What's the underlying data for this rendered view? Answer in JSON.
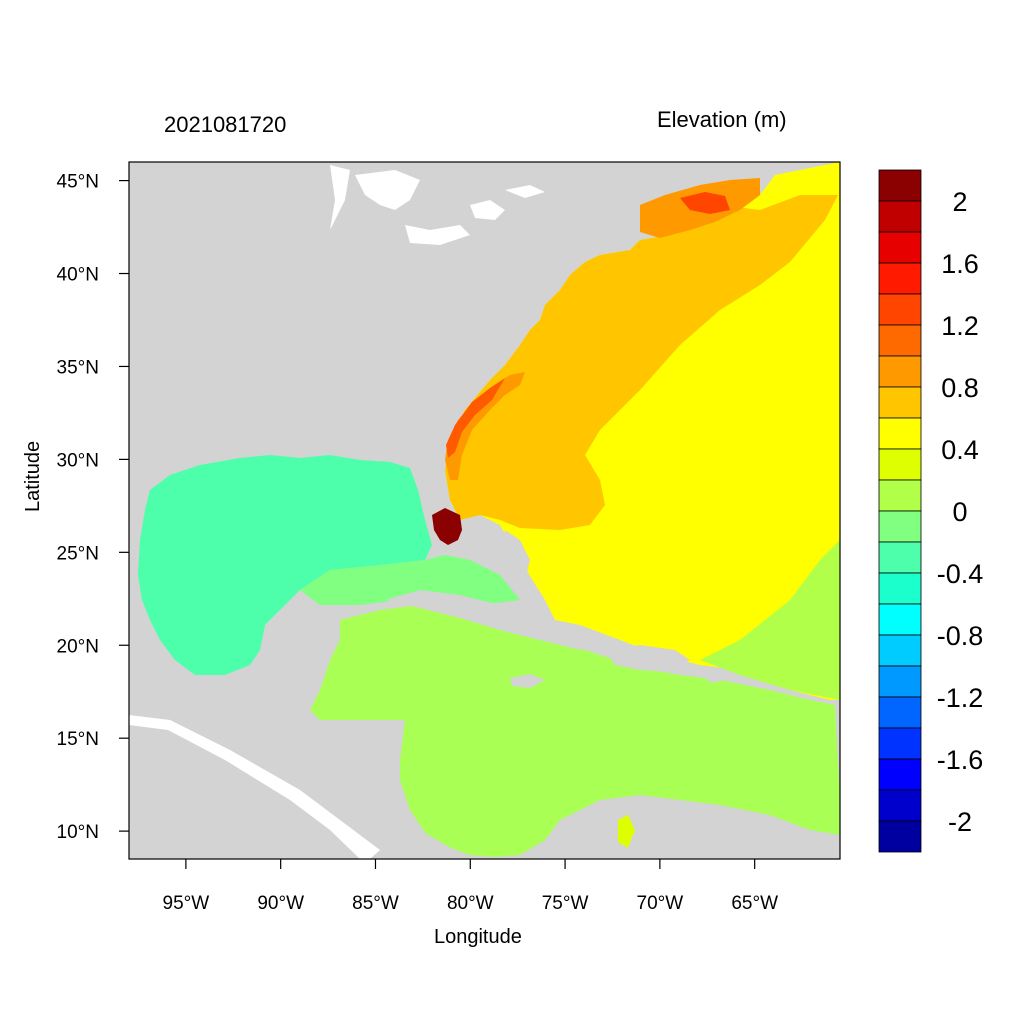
{
  "left_title": "2021081720",
  "right_title": "Elevation (m)",
  "x_axis_title": "Longitude",
  "y_axis_title": "Latitude",
  "lon_range": [
    -98,
    -60.5
  ],
  "lat_range": [
    8.5,
    46
  ],
  "lon_ticks": [
    {
      "value": -95,
      "label": "95°W"
    },
    {
      "value": -90,
      "label": "90°W"
    },
    {
      "value": -85,
      "label": "85°W"
    },
    {
      "value": -80,
      "label": "80°W"
    },
    {
      "value": -75,
      "label": "75°W"
    },
    {
      "value": -70,
      "label": "70°W"
    },
    {
      "value": -65,
      "label": "65°W"
    }
  ],
  "lat_ticks": [
    {
      "value": 45,
      "label": "45°N"
    },
    {
      "value": 40,
      "label": "40°N"
    },
    {
      "value": 35,
      "label": "35°N"
    },
    {
      "value": 30,
      "label": "30°N"
    },
    {
      "value": 25,
      "label": "25°N"
    },
    {
      "value": 20,
      "label": "20°N"
    },
    {
      "value": 15,
      "label": "15°N"
    },
    {
      "value": 10,
      "label": "10°N"
    }
  ],
  "colorbar": {
    "colors": [
      "#8b0000",
      "#c00000",
      "#e60000",
      "#ff1a00",
      "#ff4500",
      "#ff6a00",
      "#ff9900",
      "#ffc600",
      "#ffff00",
      "#ddff00",
      "#b2ff4a",
      "#80ff80",
      "#4dffaa",
      "#1affcc",
      "#00ffff",
      "#00ccff",
      "#0099ff",
      "#0066ff",
      "#0033ff",
      "#0000ff",
      "#0000cc",
      "#0000a0"
    ],
    "labels": [
      "2",
      "1.6",
      "1.2",
      "0.8",
      "0.4",
      "0",
      "-0.4",
      "-0.8",
      "-1.2",
      "-1.6",
      "-2"
    ]
  },
  "colors": {
    "land": "#d3d3d3",
    "gulf": "#4dffaa",
    "caribbean": "#aaff55",
    "atlantic_yellow": "#ffff00",
    "atlantic_orange": "#ffc600",
    "surge_orange": "#ff9900",
    "surge_red": "#ff5a00",
    "surge_darkred": "#8b0000",
    "lake": "#ffffff"
  }
}
